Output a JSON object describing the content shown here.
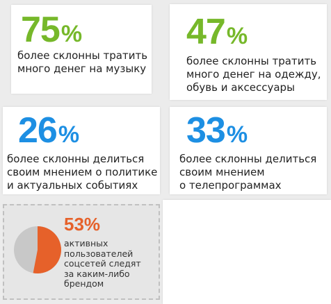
{
  "stats": [
    {
      "value": "75",
      "unit": "%",
      "description": "более склонны тратить\nмного денег на музыку",
      "color": "#76b82a"
    },
    {
      "value": "47",
      "unit": "%",
      "description": "более склонны тратить\nмного денег на одежду,\nобувь и аксессуары",
      "color": "#76b82a"
    },
    {
      "value": "26",
      "unit": "%",
      "description": "более склонны делиться\nсвоим мнением о политике\nи актуальных событиях",
      "color": "#1d8fe3"
    },
    {
      "value": "33",
      "unit": "%",
      "description": "более склонны делиться\nсвоим мнением\nо телепрограммах",
      "color": "#1d8fe3"
    }
  ],
  "brand_stat": {
    "value": "53%",
    "fraction": 0.53,
    "description": "активных\nпользователей\nсоцсетей следят\nза каким-либо\nбрендом",
    "color": "#e6612a",
    "pie_rest_color": "#c8c8c8"
  }
}
